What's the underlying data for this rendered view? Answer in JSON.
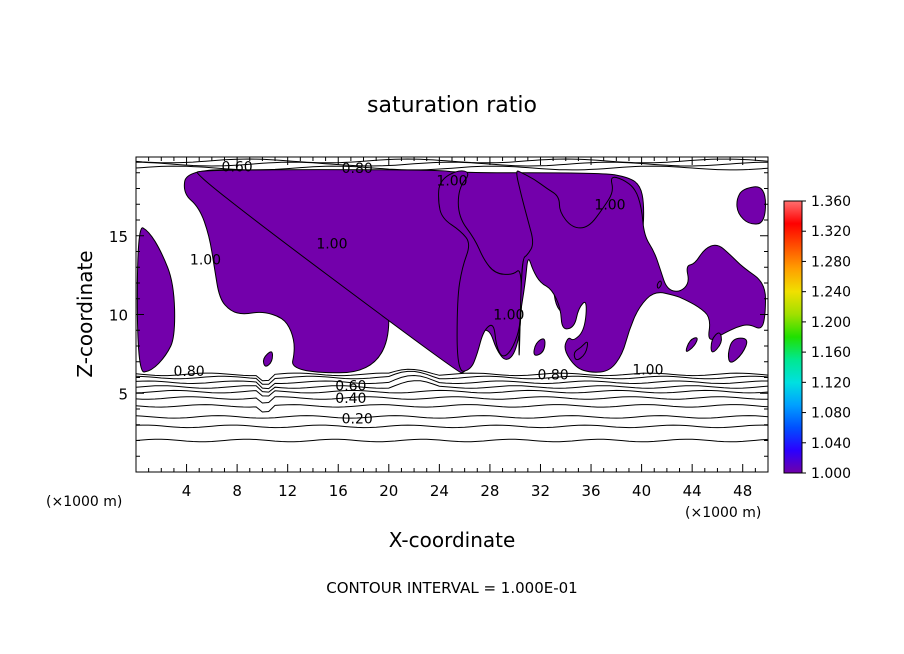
{
  "chart_data": {
    "type": "contour",
    "title": "saturation ratio",
    "xlabel": "X-coordinate",
    "ylabel": "Z-coordinate",
    "x_unit_left": "(×1000 m)",
    "x_unit_right": "(×1000 m)",
    "xlim": [
      0,
      50
    ],
    "ylim": [
      0,
      20
    ],
    "x_ticks": [
      "4",
      "8",
      "12",
      "16",
      "20",
      "24",
      "28",
      "32",
      "36",
      "40",
      "44",
      "48"
    ],
    "x_tick_values": [
      4,
      8,
      12,
      16,
      20,
      24,
      28,
      32,
      36,
      40,
      44,
      48
    ],
    "y_ticks": [
      "5",
      "10",
      "15"
    ],
    "y_tick_values": [
      5,
      10,
      15
    ],
    "contour_interval_text": "CONTOUR INTERVAL = 1.000E-01",
    "contour_labels": [
      {
        "text": "0.60",
        "x": 8.0,
        "y": 19.4
      },
      {
        "text": "0.80",
        "x": 17.5,
        "y": 19.3
      },
      {
        "text": "1.00",
        "x": 25.0,
        "y": 18.5
      },
      {
        "text": "1.00",
        "x": 37.5,
        "y": 17.0
      },
      {
        "text": "1.00",
        "x": 15.5,
        "y": 14.5
      },
      {
        "text": "1.00",
        "x": 5.5,
        "y": 13.5
      },
      {
        "text": "1.00",
        "x": 29.5,
        "y": 10.0
      },
      {
        "text": "0.80",
        "x": 4.2,
        "y": 6.4
      },
      {
        "text": "0.80",
        "x": 33.0,
        "y": 6.2
      },
      {
        "text": "1.00",
        "x": 40.5,
        "y": 6.5
      },
      {
        "text": "0.60",
        "x": 17.0,
        "y": 5.5
      },
      {
        "text": "0.40",
        "x": 17.0,
        "y": 4.7
      },
      {
        "text": "0.20",
        "x": 17.5,
        "y": 3.4
      }
    ],
    "saturated_regions": [
      [
        [
          0.1,
          6.3
        ],
        [
          0.1,
          15.7
        ],
        [
          1.0,
          15.3
        ],
        [
          2.0,
          14.0
        ],
        [
          3.0,
          12.0
        ],
        [
          3.1,
          8.6
        ],
        [
          2.4,
          7.4
        ],
        [
          1.2,
          6.4
        ]
      ],
      [
        [
          3.7,
          17.7
        ],
        [
          4.0,
          19.2
        ],
        [
          10.2,
          19.2
        ],
        [
          11.5,
          18.6
        ],
        [
          13.5,
          17.6
        ],
        [
          16.0,
          17.0
        ],
        [
          18.4,
          16.2
        ],
        [
          19.5,
          15.0
        ],
        [
          20.0,
          13.0
        ],
        [
          20.0,
          6.3
        ],
        [
          12.2,
          6.3
        ],
        [
          12.6,
          7.8
        ],
        [
          12.3,
          9.0
        ],
        [
          11.6,
          9.8
        ],
        [
          10.0,
          10.2
        ],
        [
          8.5,
          10.0
        ],
        [
          7.5,
          10.2
        ],
        [
          6.6,
          11.0
        ],
        [
          6.2,
          13.0
        ],
        [
          5.8,
          15.0
        ],
        [
          5.0,
          16.8
        ]
      ],
      [
        [
          10.0,
          7.2
        ],
        [
          10.8,
          7.8
        ],
        [
          10.8,
          7.0
        ],
        [
          10.2,
          6.6
        ]
      ],
      [
        [
          4.5,
          18.9
        ],
        [
          5.2,
          19.2
        ],
        [
          23.8,
          19.2
        ],
        [
          25.5,
          19.0
        ],
        [
          37.0,
          19.0
        ],
        [
          39.0,
          18.7
        ],
        [
          39.9,
          18.2
        ],
        [
          40.2,
          17.0
        ],
        [
          40.1,
          15.0
        ],
        [
          38.8,
          14.0
        ],
        [
          36.7,
          13.6
        ],
        [
          36.0,
          13.0
        ],
        [
          35.5,
          11.5
        ],
        [
          34.5,
          10.5
        ],
        [
          33.8,
          10.0
        ],
        [
          33.2,
          10.6
        ],
        [
          33.0,
          11.8
        ],
        [
          32.5,
          13.0
        ],
        [
          31.2,
          13.7
        ],
        [
          30.5,
          13.7
        ],
        [
          30.5,
          9.5
        ],
        [
          30.0,
          7.5
        ],
        [
          29.2,
          7.0
        ],
        [
          28.5,
          7.8
        ],
        [
          28.0,
          9.0
        ],
        [
          27.3,
          9.0
        ],
        [
          27.0,
          7.5
        ],
        [
          26.0,
          6.3
        ],
        [
          25.5,
          6.3
        ]
      ],
      [
        [
          25.4,
          6.3
        ],
        [
          25.4,
          11.0
        ],
        [
          25.8,
          13.0
        ],
        [
          26.5,
          14.5
        ],
        [
          25.7,
          15.3
        ],
        [
          24.2,
          16.1
        ],
        [
          23.9,
          17.2
        ],
        [
          24.0,
          18.5
        ],
        [
          25.5,
          19.2
        ],
        [
          26.5,
          19.0
        ],
        [
          25.5,
          18.0
        ],
        [
          25.5,
          16.2
        ],
        [
          26.8,
          14.8
        ],
        [
          27.5,
          13.5
        ],
        [
          28.4,
          12.6
        ],
        [
          29.8,
          12.5
        ],
        [
          30.5,
          13.0
        ],
        [
          30.5,
          9.5
        ],
        [
          29.8,
          7.8
        ],
        [
          29.0,
          7.2
        ],
        [
          28.5,
          8.0
        ],
        [
          28.3,
          9.5
        ],
        [
          27.5,
          9.0
        ],
        [
          27.0,
          7.5
        ],
        [
          26.5,
          6.5
        ]
      ],
      [
        [
          30.3,
          6.3
        ],
        [
          30.3,
          9.6
        ],
        [
          30.8,
          12.0
        ],
        [
          31.0,
          13.8
        ],
        [
          31.4,
          12.8
        ],
        [
          32.0,
          12.0
        ],
        [
          32.9,
          11.6
        ],
        [
          33.6,
          10.4
        ],
        [
          33.7,
          9.0
        ],
        [
          34.7,
          9.2
        ],
        [
          35.0,
          10.4
        ],
        [
          35.7,
          11.0
        ],
        [
          35.5,
          9.0
        ],
        [
          34.6,
          8.3
        ],
        [
          34.2,
          8.6
        ],
        [
          33.8,
          7.8
        ],
        [
          34.8,
          6.6
        ],
        [
          36.0,
          6.3
        ],
        [
          37.5,
          6.4
        ],
        [
          38.5,
          7.5
        ],
        [
          39.0,
          9.0
        ],
        [
          39.8,
          10.5
        ],
        [
          41.0,
          11.5
        ],
        [
          42.7,
          11.2
        ],
        [
          43.3,
          11.0
        ],
        [
          44.5,
          10.5
        ],
        [
          45.5,
          9.8
        ],
        [
          45.2,
          8.2
        ],
        [
          46.5,
          8.8
        ],
        [
          47.5,
          9.2
        ],
        [
          48.5,
          9.4
        ],
        [
          49.5,
          9.0
        ],
        [
          49.8,
          10.0
        ],
        [
          49.8,
          12.0
        ],
        [
          48.0,
          13.0
        ],
        [
          47.0,
          13.8
        ],
        [
          46.0,
          14.5
        ],
        [
          45.0,
          14.2
        ],
        [
          44.2,
          13.2
        ],
        [
          43.5,
          13.1
        ],
        [
          43.8,
          12.0
        ],
        [
          43.0,
          11.4
        ],
        [
          42.0,
          11.6
        ],
        [
          41.5,
          12.8
        ],
        [
          41.0,
          14.0
        ],
        [
          40.2,
          15.0
        ],
        [
          40.0,
          16.8
        ],
        [
          39.5,
          18.0
        ],
        [
          38.5,
          18.6
        ],
        [
          37.5,
          18.8
        ],
        [
          37.8,
          17.8
        ],
        [
          37.0,
          16.8
        ],
        [
          35.8,
          15.5
        ],
        [
          34.5,
          15.5
        ],
        [
          33.5,
          16.5
        ],
        [
          33.5,
          17.5
        ],
        [
          32.5,
          18.0
        ],
        [
          31.5,
          18.6
        ],
        [
          30.5,
          19.0
        ],
        [
          30.0,
          19.2
        ],
        [
          30.5,
          17.5
        ],
        [
          31.0,
          16.0
        ],
        [
          31.5,
          14.5
        ],
        [
          31.0,
          13.8
        ],
        [
          30.5,
          13.5
        ]
      ],
      [
        [
          34.8,
          7.0
        ],
        [
          35.6,
          7.5
        ],
        [
          35.8,
          8.4
        ],
        [
          35.2,
          7.9
        ],
        [
          34.6,
          7.6
        ]
      ],
      [
        [
          31.4,
          7.3
        ],
        [
          32.3,
          7.6
        ],
        [
          32.4,
          8.6
        ],
        [
          31.6,
          8.2
        ]
      ],
      [
        [
          43.4,
          7.5
        ],
        [
          44.2,
          8.0
        ],
        [
          44.5,
          8.6
        ],
        [
          43.8,
          8.4
        ]
      ],
      [
        [
          45.5,
          7.4
        ],
        [
          46.4,
          8.2
        ],
        [
          46.2,
          9.0
        ],
        [
          45.5,
          8.4
        ]
      ],
      [
        [
          47.0,
          6.8
        ],
        [
          48.0,
          7.5
        ],
        [
          48.5,
          8.5
        ],
        [
          47.2,
          8.5
        ],
        [
          46.8,
          7.5
        ]
      ],
      [
        [
          47.5,
          17.3
        ],
        [
          48.0,
          18.0
        ],
        [
          49.8,
          18.2
        ],
        [
          49.8,
          15.8
        ],
        [
          48.5,
          15.7
        ],
        [
          47.6,
          16.4
        ]
      ],
      [
        [
          41.3,
          11.6
        ],
        [
          41.6,
          11.9
        ],
        [
          41.5,
          12.2
        ],
        [
          41.2,
          11.9
        ]
      ]
    ],
    "colorbar": {
      "labels": [
        "1.360",
        "1.320",
        "1.280",
        "1.240",
        "1.200",
        "1.160",
        "1.120",
        "1.080",
        "1.040",
        "1.000"
      ],
      "min": 1.0,
      "max": 1.36,
      "colors": [
        "#7000a8",
        "#2b00ff",
        "#0050ff",
        "#00a0ff",
        "#00e0e0",
        "#00e890",
        "#20e000",
        "#a0e000",
        "#f0e000",
        "#ffa000",
        "#ff5000",
        "#ff0000",
        "#ff7070"
      ]
    },
    "fill_color": "#7300ab"
  }
}
